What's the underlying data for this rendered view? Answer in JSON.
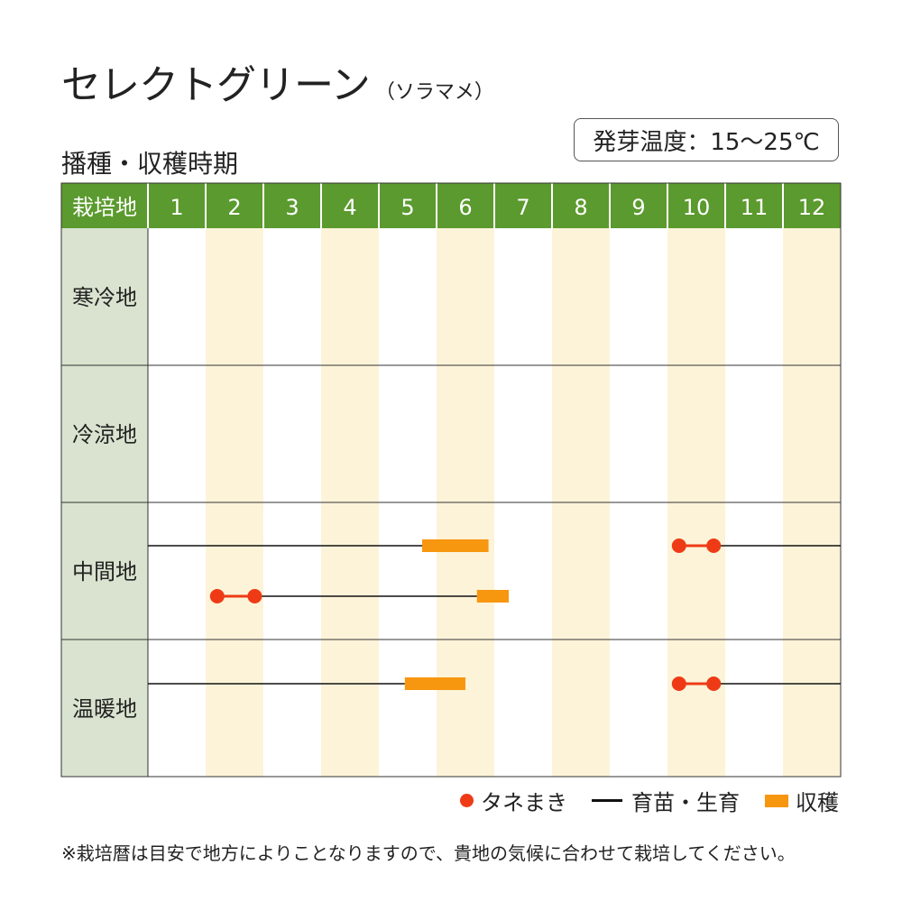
{
  "title": {
    "main": "セレクトグリーン",
    "sub": "（ソラマメ）"
  },
  "section_label": "播種・収穫時期",
  "germination": "発芽温度：15〜25℃",
  "legend": {
    "sowing": "タネまき",
    "growing": "育苗・生育",
    "harvest": "収穫"
  },
  "footnote": "※栽培暦は目安で地方によりことなりますので、貴地の気候に合わせて栽培してください。",
  "colors": {
    "header_green": "#5b9a2e",
    "region_bg": "#d9e3cf",
    "stripe": "#fdf3d8",
    "sowing": "#ee3b16",
    "harvest": "#f7960f",
    "growing": "#111111"
  },
  "chart_data": {
    "type": "table",
    "corner_label": "栽培地",
    "months": [
      "1",
      "2",
      "3",
      "4",
      "5",
      "6",
      "7",
      "8",
      "9",
      "10",
      "11",
      "12"
    ],
    "regions": [
      {
        "name": "寒冷地",
        "rows": []
      },
      {
        "name": "冷涼地",
        "rows": []
      },
      {
        "name": "中間地",
        "rows": [
          {
            "sowing": [
              10.2,
              10.8
            ],
            "growing": [
              [
                10.8,
                13.0
              ],
              [
                1.0,
                5.75
              ]
            ],
            "harvest": [
              5.75,
              6.9
            ]
          },
          {
            "sowing": [
              2.2,
              2.85
            ],
            "growing": [
              [
                2.85,
                6.7
              ]
            ],
            "harvest": [
              6.7,
              7.25
            ]
          }
        ]
      },
      {
        "name": "温暖地",
        "rows": [
          {
            "sowing": [
              10.2,
              10.8
            ],
            "growing": [
              [
                10.8,
                13.0
              ],
              [
                1.0,
                5.45
              ]
            ],
            "harvest": [
              5.45,
              6.5
            ]
          }
        ]
      }
    ]
  }
}
